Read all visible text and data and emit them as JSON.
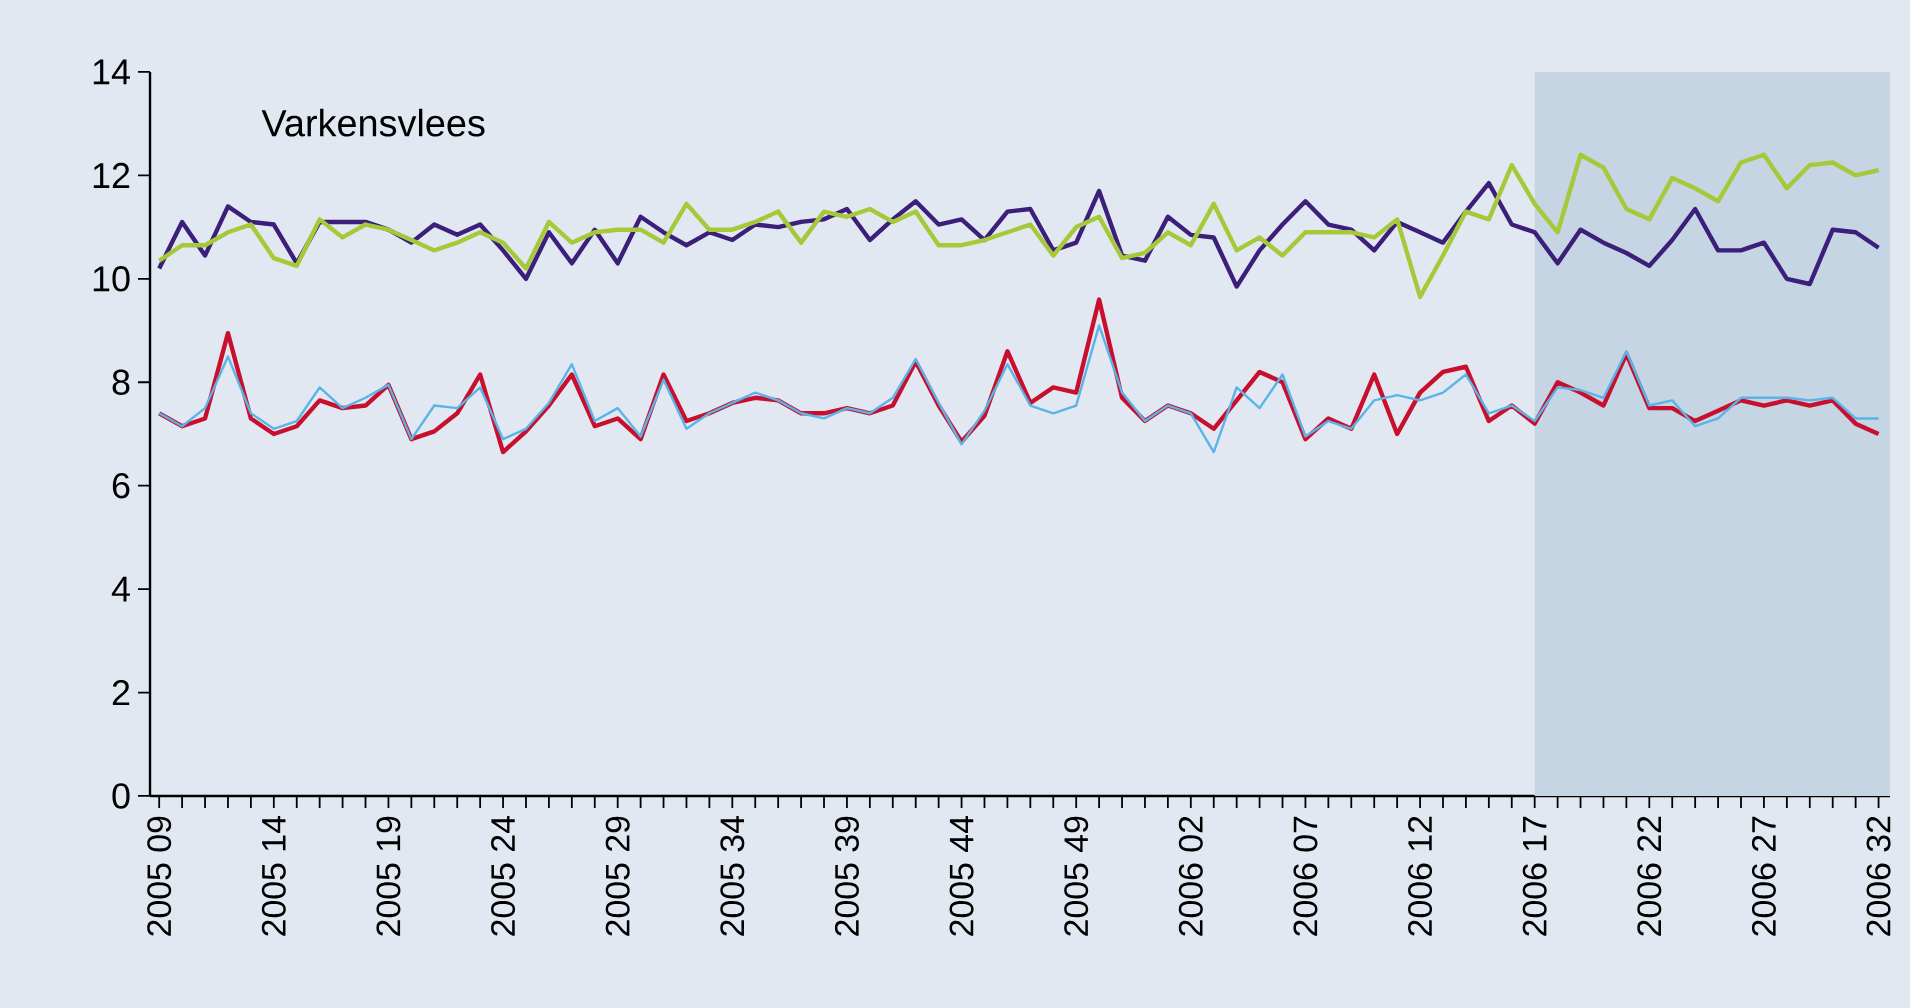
{
  "chart_data": {
    "type": "line",
    "title": "Varkensvlees",
    "categories": [
      "2005 09",
      null,
      null,
      null,
      null,
      "2005 14",
      null,
      null,
      null,
      null,
      "2005 19",
      null,
      null,
      null,
      null,
      "2005 24",
      null,
      null,
      null,
      null,
      "2005 29",
      null,
      null,
      null,
      null,
      "2005 34",
      null,
      null,
      null,
      null,
      "2005 39",
      null,
      null,
      null,
      null,
      "2005 44",
      null,
      null,
      null,
      null,
      "2005 49",
      null,
      null,
      null,
      null,
      "2006 02",
      null,
      null,
      null,
      null,
      "2006 07",
      null,
      null,
      null,
      null,
      "2006 12",
      null,
      null,
      null,
      null,
      "2006 17",
      null,
      null,
      null,
      null,
      "2006 22",
      null,
      null,
      null,
      null,
      "2006 27",
      null,
      null,
      null,
      null,
      "2006 32"
    ],
    "series": [
      {
        "color": "#3b1f7a",
        "values": [
          10.2,
          11.1,
          10.45,
          11.4,
          11.1,
          11.05,
          10.3,
          11.1,
          11.1,
          11.1,
          10.95,
          10.7,
          11.05,
          10.85,
          11.05,
          10.55,
          10.0,
          10.9,
          10.3,
          10.95,
          10.3,
          11.2,
          10.9,
          10.65,
          10.9,
          10.75,
          11.05,
          11.0,
          11.1,
          11.15,
          11.35,
          10.75,
          11.15,
          11.5,
          11.05,
          11.15,
          10.75,
          11.3,
          11.35,
          10.55,
          10.7,
          11.7,
          10.45,
          10.35,
          11.2,
          10.85,
          10.8,
          9.85,
          10.55,
          11.05,
          11.5,
          11.05,
          10.95,
          10.55,
          11.1,
          10.9,
          10.7,
          11.3,
          11.85,
          11.05,
          10.9,
          10.3,
          10.95,
          10.7,
          10.5,
          10.25,
          10.75,
          11.35,
          10.55,
          10.55,
          10.7,
          10.0,
          9.9,
          10.95,
          10.9,
          10.6
        ]
      },
      {
        "color": "#a6c93a",
        "values": [
          10.35,
          10.65,
          10.65,
          10.9,
          11.05,
          10.4,
          10.25,
          11.15,
          10.8,
          11.05,
          10.95,
          10.75,
          10.55,
          10.7,
          10.9,
          10.7,
          10.2,
          11.1,
          10.7,
          10.9,
          10.95,
          10.95,
          10.7,
          11.45,
          10.95,
          10.95,
          11.1,
          11.3,
          10.7,
          11.3,
          11.2,
          11.35,
          11.1,
          11.3,
          10.65,
          10.65,
          10.75,
          10.9,
          11.05,
          10.45,
          11.0,
          11.2,
          10.4,
          10.5,
          10.9,
          10.65,
          11.45,
          10.55,
          10.8,
          10.45,
          10.9,
          10.9,
          10.9,
          10.8,
          11.15,
          9.65,
          10.45,
          11.3,
          11.15,
          12.2,
          11.45,
          10.9,
          12.4,
          12.15,
          11.35,
          11.15,
          11.95,
          11.75,
          11.5,
          12.25,
          12.4,
          11.75,
          12.2,
          12.25,
          12.0,
          12.1
        ]
      },
      {
        "color": "#c8102e",
        "values": [
          7.4,
          7.15,
          7.3,
          8.95,
          7.3,
          7.0,
          7.15,
          7.65,
          7.5,
          7.55,
          7.95,
          6.9,
          7.05,
          7.4,
          8.15,
          6.65,
          7.05,
          7.55,
          8.15,
          7.15,
          7.3,
          6.9,
          8.15,
          7.25,
          7.4,
          7.6,
          7.7,
          7.65,
          7.4,
          7.4,
          7.5,
          7.4,
          7.55,
          8.4,
          7.55,
          6.85,
          7.35,
          8.6,
          7.6,
          7.9,
          7.8,
          9.6,
          7.7,
          7.25,
          7.55,
          7.4,
          7.1,
          7.65,
          8.2,
          8.0,
          6.9,
          7.3,
          7.1,
          8.15,
          7.0,
          7.8,
          8.2,
          8.3,
          7.25,
          7.55,
          7.2,
          8.0,
          7.8,
          7.55,
          8.55,
          7.5,
          7.5,
          7.25,
          7.45,
          7.65,
          7.55,
          7.65,
          7.55,
          7.65,
          7.2,
          7.0
        ]
      },
      {
        "color": "#5ab4e8",
        "values": [
          7.4,
          7.15,
          7.5,
          8.5,
          7.4,
          7.1,
          7.25,
          7.9,
          7.5,
          7.7,
          7.95,
          6.9,
          7.55,
          7.5,
          7.9,
          6.9,
          7.1,
          7.6,
          8.35,
          7.25,
          7.5,
          6.95,
          8.05,
          7.1,
          7.4,
          7.6,
          7.8,
          7.65,
          7.4,
          7.3,
          7.5,
          7.4,
          7.7,
          8.45,
          7.6,
          6.8,
          7.45,
          8.35,
          7.55,
          7.4,
          7.55,
          9.1,
          7.8,
          7.25,
          7.55,
          7.4,
          6.65,
          7.9,
          7.5,
          8.15,
          6.95,
          7.25,
          7.1,
          7.65,
          7.75,
          7.65,
          7.8,
          8.15,
          7.4,
          7.55,
          7.25,
          7.9,
          7.85,
          7.7,
          8.6,
          7.55,
          7.65,
          7.15,
          7.3,
          7.7,
          7.7,
          7.7,
          7.65,
          7.7,
          7.3,
          7.3
        ]
      }
    ],
    "ylim": [
      0,
      14
    ],
    "yticks": [
      0,
      2,
      4,
      6,
      8,
      10,
      12,
      14
    ],
    "bands": [
      {
        "axis": "x",
        "from": "2006 17",
        "to": "2006 32",
        "color": "#c5d5e3"
      }
    ],
    "marker": "none",
    "line_style": "solid"
  }
}
